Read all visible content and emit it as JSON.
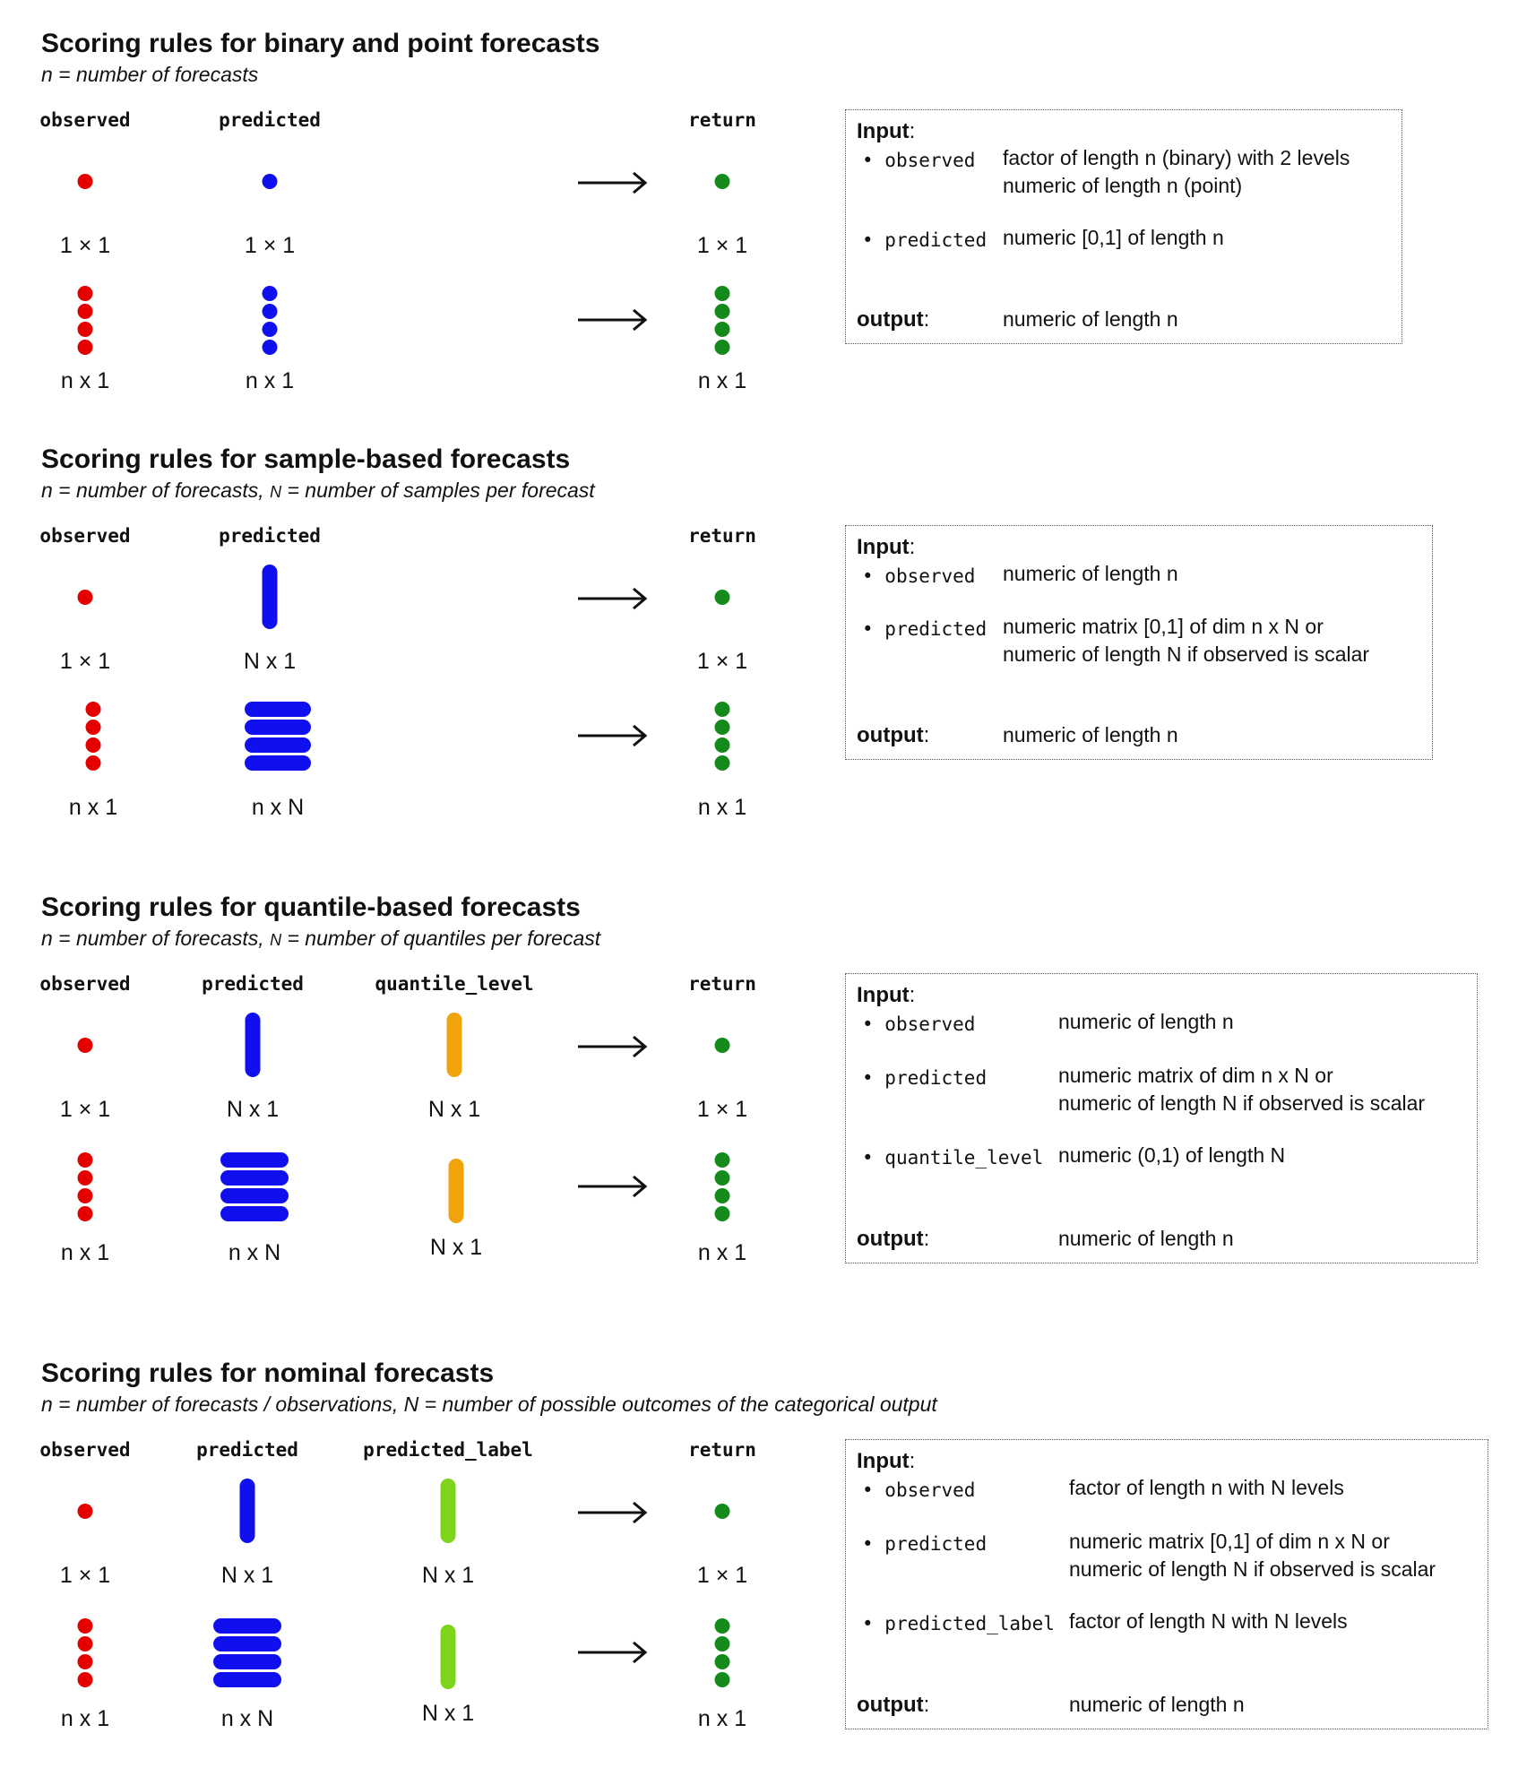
{
  "sections": [
    {
      "title": "Scoring rules for binary and point forecasts",
      "subtitle_n": "n",
      "subtitle_rest": " = number of forecasts",
      "headers": {
        "observed": "observed",
        "predicted": "predicted",
        "return": "return"
      },
      "dims": {
        "obs1": "1 × 1",
        "pred1": "1 × 1",
        "ret1": "1 × 1",
        "obsn": "n x 1",
        "predn": "n x 1",
        "retn": "n x 1"
      },
      "box": {
        "input_label": "Input",
        "args": [
          {
            "name": "observed",
            "desc": [
              "factor of length n (binary) with 2 levels",
              "numeric of length n (point)"
            ]
          },
          {
            "name": "predicted",
            "desc": [
              "numeric [0,1] of length n"
            ]
          }
        ],
        "output_label": "output",
        "output_desc": "numeric of length n"
      }
    },
    {
      "title": "Scoring rules for sample-based forecasts",
      "subtitle_n": "n",
      "subtitle_rest": " = number of forecasts, ",
      "subtitle_N": "N",
      "subtitle_rest2": " = number of samples per forecast",
      "headers": {
        "observed": "observed",
        "predicted": "predicted",
        "return": "return"
      },
      "dims": {
        "obs1": "1 × 1",
        "pred1": "N x 1",
        "ret1": "1 × 1",
        "obsn": "n x 1",
        "predn": "n x N",
        "retn": "n x 1"
      },
      "box": {
        "input_label": "Input",
        "args": [
          {
            "name": "observed",
            "desc": [
              "numeric of length n"
            ]
          },
          {
            "name": "predicted",
            "desc": [
              "numeric matrix [0,1] of dim n x N or",
              "numeric of length N if observed is scalar"
            ]
          }
        ],
        "output_label": "output",
        "output_desc": "numeric of length n"
      }
    },
    {
      "title": "Scoring rules for quantile-based forecasts",
      "subtitle_n": "n",
      "subtitle_rest": " = number of forecasts, ",
      "subtitle_N": "N",
      "subtitle_rest2": " = number of quantiles per forecast",
      "headers": {
        "observed": "observed",
        "predicted": "predicted",
        "extra": "quantile_level",
        "return": "return"
      },
      "dims": {
        "obs1": "1 × 1",
        "pred1": "N x 1",
        "extra1": "N x 1",
        "ret1": "1 × 1",
        "obsn": "n x 1",
        "predn": "n x N",
        "extran": "N x 1",
        "retn": "n x 1"
      },
      "box": {
        "input_label": "Input",
        "args": [
          {
            "name": "observed",
            "desc": [
              "numeric of length n"
            ]
          },
          {
            "name": "predicted",
            "desc": [
              "numeric matrix of dim n x N or",
              "numeric of length N if observed is scalar"
            ]
          },
          {
            "name": "quantile_level",
            "desc": [
              "numeric (0,1) of length N"
            ]
          }
        ],
        "output_label": "output",
        "output_desc": "numeric of length n"
      }
    },
    {
      "title": "Scoring rules for nominal forecasts",
      "subtitle_full": "n = number of forecasts / observations, N = number of possible outcomes of the categorical output",
      "headers": {
        "observed": "observed",
        "predicted": "predicted",
        "extra": "predicted_label",
        "return": "return"
      },
      "dims": {
        "obs1": "1 × 1",
        "pred1": "N x 1",
        "extra1": "N x 1",
        "ret1": "1 × 1",
        "obsn": "n x 1",
        "predn": "n x N",
        "extran": "N x 1",
        "retn": "n x 1"
      },
      "box": {
        "input_label": "Input",
        "args": [
          {
            "name": "observed",
            "desc": [
              "factor of length n with N levels"
            ]
          },
          {
            "name": "predicted",
            "desc": [
              "numeric matrix [0,1] of dim n x N or",
              "numeric of length N if observed is scalar"
            ]
          },
          {
            "name": "predicted_label",
            "desc": [
              "factor of length N with N levels"
            ]
          }
        ],
        "output_label": "output",
        "output_desc": "numeric of length n"
      }
    }
  ],
  "colors": {
    "observed": "#e50000",
    "predicted": "#1010ee",
    "return": "#148a1a",
    "quantile_level": "#f0a30a",
    "predicted_label": "#7ed31b"
  },
  "icons": {
    "arrow": "right-arrow-icon"
  }
}
